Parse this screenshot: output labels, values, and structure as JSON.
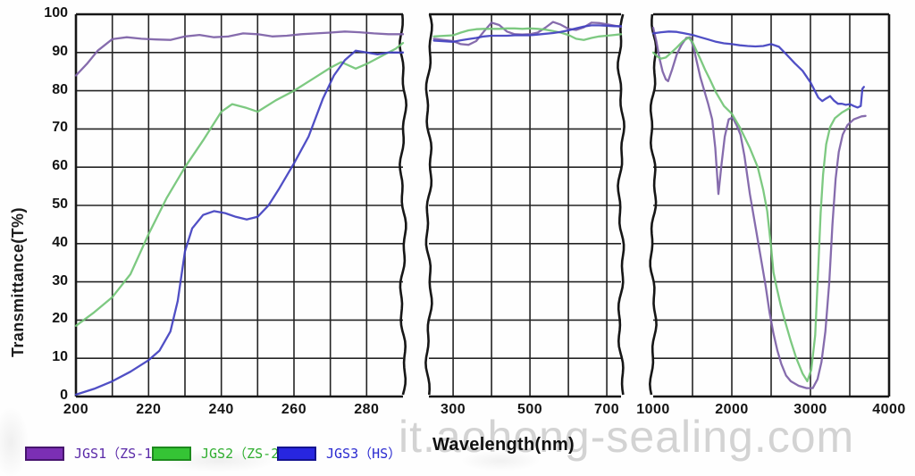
{
  "axes": {
    "y_label": "Transmittance(T%)",
    "x_label": "Wavelength(nm)",
    "y_ticks": [
      "100",
      "90",
      "80",
      "70",
      "60",
      "50",
      "40",
      "30",
      "20",
      "10",
      "0"
    ],
    "x_ticks_panel1": [
      "200",
      "220",
      "240",
      "260",
      "280"
    ],
    "x_ticks_panel2": [
      "300",
      "500",
      "700"
    ],
    "x_ticks_panel3": [
      "1000",
      "2000",
      "3000",
      "4000"
    ]
  },
  "legend": {
    "items": [
      {
        "label": "JGS1（ZS-1）",
        "swatch_fill": "#7b2fb4",
        "swatch_border": "#47156e",
        "text_color": "#5a2aa8"
      },
      {
        "label": "JGS2（ZS-2）",
        "swatch_fill": "#35c435",
        "swatch_border": "#1d8a1d",
        "text_color": "#2fae2f"
      },
      {
        "label": "JGS3（HS）",
        "swatch_fill": "#2726e0",
        "swatch_border": "#14138f",
        "text_color": "#2a2ad0"
      }
    ]
  },
  "watermark": "it.aohong-sealing.com",
  "chart_data": {
    "type": "line",
    "title": "",
    "xlabel": "Wavelength(nm)",
    "ylabel": "Transmittance(T%)",
    "ylim": [
      0,
      100
    ],
    "y_gridline_step": 10,
    "grid": true,
    "legend_position": "bottom-left",
    "axis_breaks": true,
    "panels": [
      {
        "x_range": [
          200,
          290
        ],
        "gridline_step_nm": 10,
        "tick_labels": [
          200,
          220,
          240,
          260,
          280
        ]
      },
      {
        "x_range": [
          250,
          740
        ],
        "gridlines_nm": [
          300,
          400,
          500,
          600,
          700
        ],
        "tick_labels": [
          300,
          500,
          700
        ]
      },
      {
        "x_range": [
          1000,
          4000
        ],
        "gridline_step_nm": 500,
        "tick_labels": [
          1000,
          2000,
          3000,
          4000
        ]
      }
    ],
    "series": [
      {
        "name": "JGS1（ZS-1）",
        "color": "#7c5fa6",
        "panels": [
          {
            "x": [
              200,
              203,
              206,
              210,
              214,
              218,
              222,
              226,
              230,
              234,
              238,
              242,
              246,
              250,
              254,
              258,
              262,
              266,
              270,
              274,
              278,
              282,
              286,
              290
            ],
            "y": [
              84,
              87,
              90.5,
              93.5,
              94,
              93.6,
              93.4,
              93.3,
              94.2,
              94.6,
              94,
              94.2,
              95,
              94.8,
              94.2,
              94.4,
              94.8,
              95,
              95.2,
              95.5,
              95.3,
              95,
              94.8,
              94.8
            ]
          },
          {
            "x": [
              250,
              300,
              320,
              340,
              360,
              380,
              400,
              420,
              440,
              460,
              480,
              500,
              520,
              540,
              560,
              580,
              600,
              620,
              640,
              660,
              680,
              700,
              720,
              737
            ],
            "y": [
              93.6,
              93,
              92.2,
              92,
              93,
              95.5,
              97.8,
              97.2,
              95.5,
              94.8,
              94.7,
              94.8,
              95.2,
              96.5,
              98,
              97.3,
              96.2,
              95.9,
              96.6,
              97.8,
              97.7,
              97.4,
              97,
              96.7
            ]
          },
          {
            "x": [
              1000,
              1040,
              1080,
              1120,
              1160,
              1190,
              1240,
              1300,
              1360,
              1420,
              1470,
              1510,
              1550,
              1600,
              1650,
              1700,
              1750,
              1790,
              1830,
              1870,
              1910,
              1960,
              2010,
              2060,
              2110,
              2160,
              2230,
              2280,
              2330,
              2380,
              2430,
              2480,
              2530,
              2580,
              2630,
              2690,
              2750,
              2850,
              2950,
              3030,
              3090,
              3140,
              3190,
              3240,
              3280,
              3320,
              3360,
              3410,
              3470,
              3550,
              3650,
              3700
            ],
            "y": [
              96.5,
              93,
              88.5,
              85,
              83,
              82.5,
              85.5,
              89.5,
              92,
              93.8,
              94,
              91.5,
              88,
              83.5,
              80,
              76.5,
              72.5,
              65,
              53,
              61,
              68,
              72.5,
              73,
              71,
              68.5,
              63,
              53,
              47,
              41,
              35,
              29,
              22,
              16.5,
              12,
              8.5,
              5.5,
              4,
              2.8,
              2.2,
              2.2,
              4.5,
              9,
              17,
              30,
              45,
              57,
              64,
              68.5,
              71,
              72.5,
              73.3,
              73.4
            ]
          }
        ]
      },
      {
        "name": "JGS2（ZS-2）",
        "color": "#72c476",
        "panels": [
          {
            "x": [
              200,
              205,
              210,
              215,
              220,
              225,
              230,
              235,
              240,
              243,
              247,
              250,
              255,
              260,
              265,
              270,
              273,
              277,
              280,
              285,
              288,
              290
            ],
            "y": [
              18.5,
              22,
              26,
              32,
              42.5,
              52,
              60,
              67,
              74.5,
              76.5,
              75.5,
              74.5,
              77.5,
              80,
              83,
              86,
              87.5,
              85.8,
              87,
              89.5,
              91,
              92.5
            ]
          },
          {
            "x": [
              250,
              300,
              320,
              340,
              360,
              380,
              400,
              420,
              440,
              460,
              480,
              500,
              520,
              540,
              560,
              580,
              600,
              620,
              640,
              660,
              680,
              700,
              720,
              737
            ],
            "y": [
              94.2,
              94.5,
              95.2,
              95.8,
              96.1,
              96.2,
              96.2,
              96.2,
              96.3,
              96.3,
              96.2,
              96.3,
              96.2,
              96,
              95.6,
              95.2,
              94.6,
              93.6,
              93.3,
              93.8,
              94.2,
              94.4,
              94.6,
              94.8
            ]
          },
          {
            "x": [
              1000,
              1050,
              1100,
              1160,
              1220,
              1300,
              1380,
              1450,
              1500,
              1550,
              1600,
              1660,
              1720,
              1800,
              1900,
              2000,
              2100,
              2230,
              2330,
              2400,
              2450,
              2500,
              2530,
              2570,
              2620,
              2680,
              2750,
              2820,
              2900,
              2960,
              3010,
              3060,
              3100,
              3130,
              3160,
              3200,
              3250,
              3310,
              3400,
              3500
            ],
            "y": [
              90,
              89,
              88.4,
              88.7,
              89.8,
              91.3,
              93,
              93.9,
              92.7,
              90.5,
              88.3,
              85.5,
              83,
              79.5,
              76,
              74,
              70.5,
              65,
              60,
              54,
              48.5,
              39,
              32.5,
              28.5,
              24,
              19.5,
              14.5,
              10,
              6,
              4,
              7,
              16,
              34,
              48,
              58,
              66,
              70.5,
              72.8,
              74.3,
              75.5
            ]
          }
        ]
      },
      {
        "name": "JGS3（HS）",
        "color": "#4140c0",
        "panels": [
          {
            "x": [
              200,
              205,
              210,
              215,
              220,
              223,
              226,
              228,
              230,
              232,
              235,
              238,
              241,
              244,
              247,
              250,
              253,
              256,
              260,
              264,
              268,
              271,
              274,
              277,
              280,
              283,
              286,
              290
            ],
            "y": [
              0.5,
              2,
              4,
              6.5,
              9.5,
              12,
              17,
              25,
              38,
              44,
              47.5,
              48.5,
              48,
              47,
              46.3,
              47,
              50,
              54.5,
              61,
              68,
              78,
              84,
              88,
              90.5,
              90,
              89.5,
              90,
              90
            ]
          },
          {
            "x": [
              250,
              300,
              320,
              340,
              360,
              380,
              400,
              420,
              440,
              460,
              480,
              500,
              520,
              540,
              560,
              580,
              600,
              620,
              640,
              660,
              680,
              700,
              720,
              737
            ],
            "y": [
              93.1,
              92.8,
              93.2,
              93.5,
              93.8,
              94.2,
              94.4,
              94.4,
              94.4,
              94.5,
              94.5,
              94.5,
              94.7,
              94.9,
              95.1,
              95.4,
              95.8,
              96.3,
              96.8,
              97.1,
              97.1,
              97,
              96.9,
              96.9
            ]
          },
          {
            "x": [
              1000,
              1100,
              1200,
              1300,
              1400,
              1500,
              1600,
              1700,
              1800,
              1900,
              2000,
              2100,
              2200,
              2300,
              2400,
              2500,
              2600,
              2700,
              2800,
              2900,
              3000,
              3050,
              3100,
              3150,
              3200,
              3250,
              3300,
              3350,
              3400,
              3450,
              3500,
              3550,
              3600,
              3640,
              3660,
              3680
            ],
            "y": [
              95,
              95.3,
              95.5,
              95.4,
              95,
              94.6,
              94,
              93.4,
              92.8,
              92.4,
              92.2,
              91.9,
              91.7,
              91.6,
              91.7,
              92.2,
              91.5,
              89.4,
              87.2,
              85.2,
              82.2,
              80.2,
              78.2,
              77.3,
              78,
              78.6,
              77.4,
              76.6,
              76.6,
              76.3,
              76.5,
              76,
              75.6,
              76,
              80.5,
              81
            ]
          }
        ]
      }
    ]
  }
}
